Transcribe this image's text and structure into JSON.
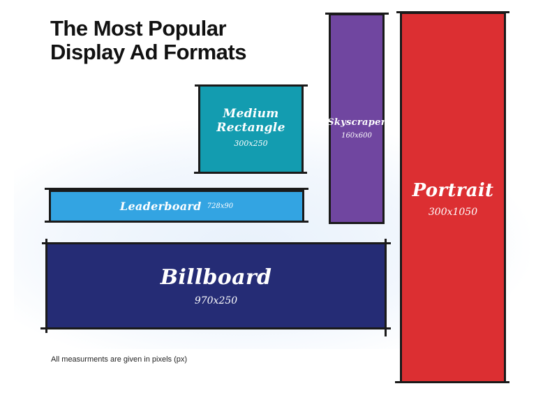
{
  "title": {
    "line1": "The Most Popular",
    "line2": "Display Ad Formats"
  },
  "formats": {
    "medium_rectangle": {
      "name": "Medium Rectangle",
      "dims": "300x250",
      "color": "#139cb0"
    },
    "skyscraper": {
      "name": "Skyscraper",
      "dims": "160x600",
      "color": "#7046a0"
    },
    "portrait": {
      "name": "Portrait",
      "dims": "300x1050",
      "color": "#dc2f32"
    },
    "leaderboard": {
      "name": "Leaderboard",
      "dims": "728x90",
      "color": "#33a4e2"
    },
    "billboard": {
      "name": "Billboard",
      "dims": "970x250",
      "color": "#252c75"
    }
  },
  "footnote": "All measurments are given in pixels (px)"
}
